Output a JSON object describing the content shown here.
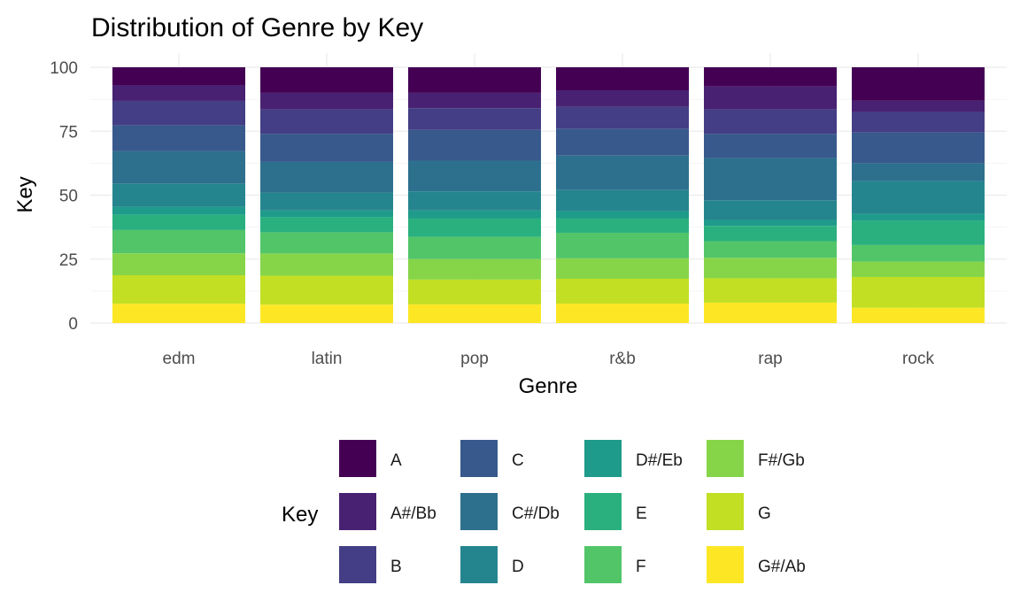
{
  "chart_data": {
    "type": "bar",
    "stacked": true,
    "title": "Distribution of Genre by Key",
    "xlabel": "Genre",
    "ylabel": "Key",
    "ylim": [
      0,
      100
    ],
    "yticks": [
      0,
      25,
      50,
      75,
      100
    ],
    "grid": true,
    "legend_position": "bottom",
    "legend_title": "Key",
    "categories": [
      "edm",
      "latin",
      "pop",
      "r&b",
      "rap",
      "rock"
    ],
    "series": [
      {
        "name": "G#/Ab",
        "color": "#FDE725",
        "values": [
          7.5,
          7.2,
          7.3,
          7.6,
          8.0,
          6.0
        ]
      },
      {
        "name": "G",
        "color": "#C2DF23",
        "values": [
          11.0,
          11.3,
          9.7,
          9.7,
          9.5,
          12.0
        ]
      },
      {
        "name": "F#/Gb",
        "color": "#86D549",
        "values": [
          8.5,
          8.7,
          8.0,
          8.0,
          8.0,
          6.0
        ]
      },
      {
        "name": "F",
        "color": "#52C569",
        "values": [
          9.0,
          8.3,
          8.7,
          10.0,
          6.5,
          6.5
        ]
      },
      {
        "name": "E",
        "color": "#2AB07F",
        "values": [
          6.0,
          6.0,
          7.3,
          5.7,
          6.0,
          9.5
        ]
      },
      {
        "name": "D#/Eb",
        "color": "#1E9B8A",
        "values": [
          3.0,
          2.5,
          3.0,
          2.8,
          2.3,
          2.7
        ]
      },
      {
        "name": "D",
        "color": "#25858E",
        "values": [
          9.0,
          7.0,
          7.5,
          8.2,
          7.7,
          12.8
        ]
      },
      {
        "name": "C#/Db",
        "color": "#2D708E",
        "values": [
          12.5,
          12.0,
          12.0,
          13.5,
          16.5,
          7.0
        ]
      },
      {
        "name": "C",
        "color": "#38598C",
        "values": [
          10.0,
          11.0,
          12.0,
          10.5,
          9.5,
          12.0
        ]
      },
      {
        "name": "B",
        "color": "#433E85",
        "values": [
          9.5,
          9.5,
          8.5,
          8.5,
          9.5,
          8.0
        ]
      },
      {
        "name": "A#/Bb",
        "color": "#482173",
        "values": [
          6.0,
          6.5,
          6.0,
          6.5,
          9.0,
          4.5
        ]
      },
      {
        "name": "A",
        "color": "#440154",
        "values": [
          7.0,
          10.0,
          10.0,
          9.0,
          7.5,
          13.0
        ]
      }
    ],
    "legend_order": [
      "A",
      "A#/Bb",
      "B",
      "C",
      "C#/Db",
      "D",
      "D#/Eb",
      "E",
      "F",
      "F#/Gb",
      "G",
      "G#/Ab"
    ]
  }
}
